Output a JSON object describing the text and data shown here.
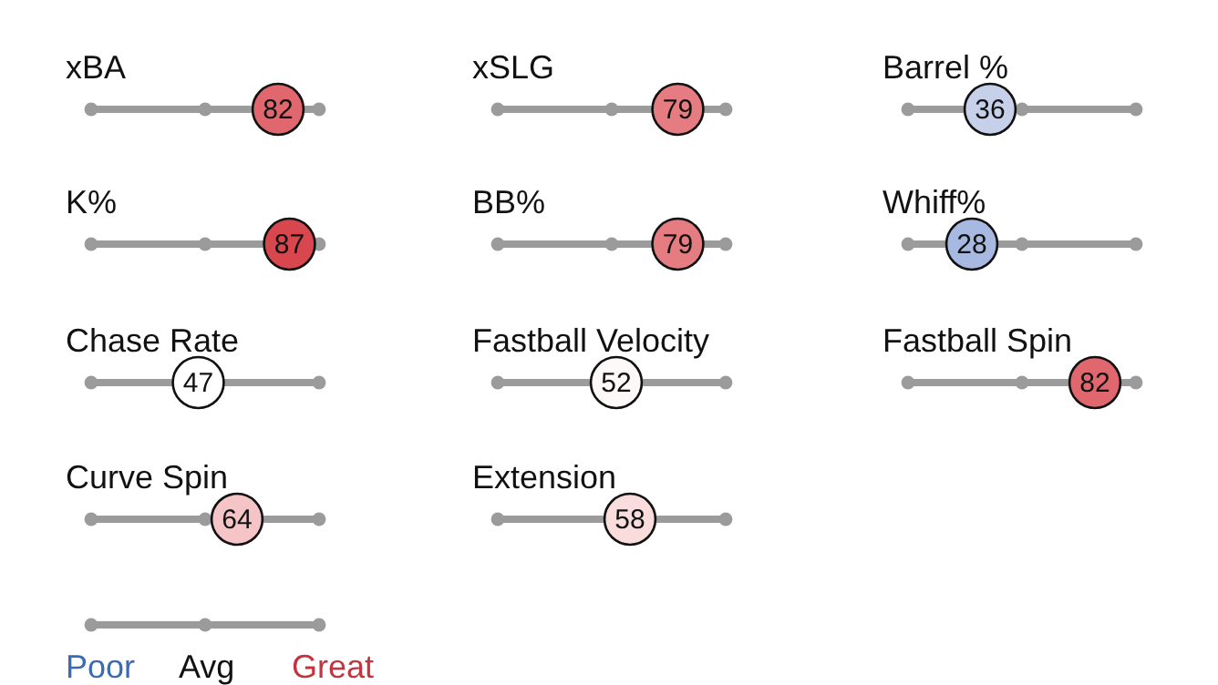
{
  "chart_data": [
    {
      "type": "other",
      "title": "xBA",
      "values": [
        82
      ],
      "colors": [
        "#e0676d"
      ],
      "data_labels": true
    },
    {
      "type": "other",
      "title": "xSLG",
      "values": [
        79
      ],
      "colors": [
        "#e57c81"
      ],
      "data_labels": true
    },
    {
      "type": "other",
      "title": "Barrel %",
      "values": [
        36
      ],
      "colors": [
        "#c6d1e9"
      ],
      "data_labels": true
    },
    {
      "type": "other",
      "title": "K%",
      "values": [
        87
      ],
      "colors": [
        "#d8474e"
      ],
      "data_labels": true
    },
    {
      "type": "other",
      "title": "BB%",
      "values": [
        79
      ],
      "colors": [
        "#e57c81"
      ],
      "data_labels": true
    },
    {
      "type": "other",
      "title": "Whiff%",
      "values": [
        28
      ],
      "colors": [
        "#a8b9e1"
      ],
      "data_labels": true
    },
    {
      "type": "other",
      "title": "Chase Rate",
      "values": [
        47
      ],
      "colors": [
        "#ffffff"
      ],
      "data_labels": true
    },
    {
      "type": "other",
      "title": "Fastball Velocity",
      "values": [
        52
      ],
      "colors": [
        "#fdf9f9"
      ],
      "data_labels": true
    },
    {
      "type": "other",
      "title": "Fastball Spin",
      "values": [
        82
      ],
      "colors": [
        "#e0676d"
      ],
      "data_labels": true
    },
    {
      "type": "other",
      "title": "Curve Spin",
      "values": [
        64
      ],
      "colors": [
        "#f5c4c6"
      ],
      "data_labels": true
    },
    {
      "type": "other",
      "title": "Extension",
      "values": [
        58
      ],
      "colors": [
        "#f9dcdc"
      ],
      "data_labels": true
    },
    {
      "type": "other",
      "annotations": [
        "Poor",
        "Avg",
        "Great"
      ]
    }
  ]
}
